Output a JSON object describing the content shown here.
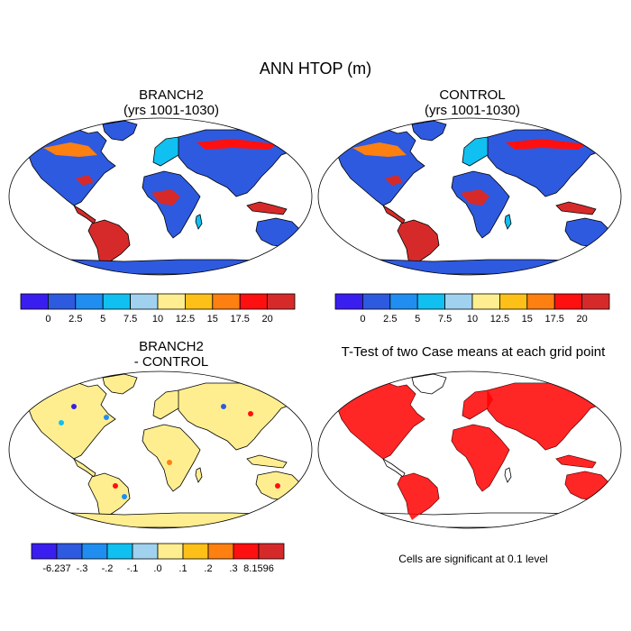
{
  "figure": {
    "title": "ANN HTOP (m)",
    "note": "Cells are significant at 0.1 level"
  },
  "panels": [
    {
      "title_line1": "BRANCH2",
      "title_line2": "(yrs 1001-1030)"
    },
    {
      "title_line1": "CONTROL",
      "title_line2": "(yrs 1001-1030)"
    },
    {
      "title_line1": "BRANCH2",
      "title_line2": "- CONTROL"
    },
    {
      "title_line1": "T-Test of two Case means at each grid point",
      "title_line2": ""
    }
  ],
  "chart_data": [
    {
      "type": "heatmap",
      "title": "BRANCH2 (yrs 1001-1030)",
      "variable": "HTOP",
      "units": "m",
      "colorbar": {
        "levels": [
          "0",
          "2.5",
          "5",
          "7.5",
          "10",
          "12.5",
          "15",
          "17.5",
          "20"
        ],
        "colors": [
          "#3a1ef0",
          "#2e5ae0",
          "#1f8ef0",
          "#10c0f0",
          "#a0d2f0",
          "#ffee90",
          "#fdc018",
          "#fd8010",
          "#ff1010",
          "#d62a2a"
        ]
      }
    },
    {
      "type": "heatmap",
      "title": "CONTROL (yrs 1001-1030)",
      "variable": "HTOP",
      "units": "m",
      "colorbar": {
        "levels": [
          "0",
          "2.5",
          "5",
          "7.5",
          "10",
          "12.5",
          "15",
          "17.5",
          "20"
        ],
        "colors": [
          "#3a1ef0",
          "#2e5ae0",
          "#1f8ef0",
          "#10c0f0",
          "#a0d2f0",
          "#ffee90",
          "#fdc018",
          "#fd8010",
          "#ff1010",
          "#d62a2a"
        ]
      }
    },
    {
      "type": "heatmap",
      "title": "BRANCH2 - CONTROL",
      "variable": "HTOP difference",
      "units": "m",
      "colorbar": {
        "levels": [
          "-6.237",
          "-.3",
          "-.2",
          "-.1",
          ".0",
          ".1",
          ".2",
          ".3",
          "8.1596"
        ],
        "colors": [
          "#3a1ef0",
          "#2e5ae0",
          "#1f8ef0",
          "#10c0f0",
          "#a0d2f0",
          "#ffee90",
          "#fdc018",
          "#fd8010",
          "#ff1010",
          "#d62a2a"
        ]
      }
    },
    {
      "type": "heatmap",
      "title": "T-Test of two Case means at each grid point",
      "significance_level": 0.1,
      "significant_color": "#ff0000"
    }
  ]
}
